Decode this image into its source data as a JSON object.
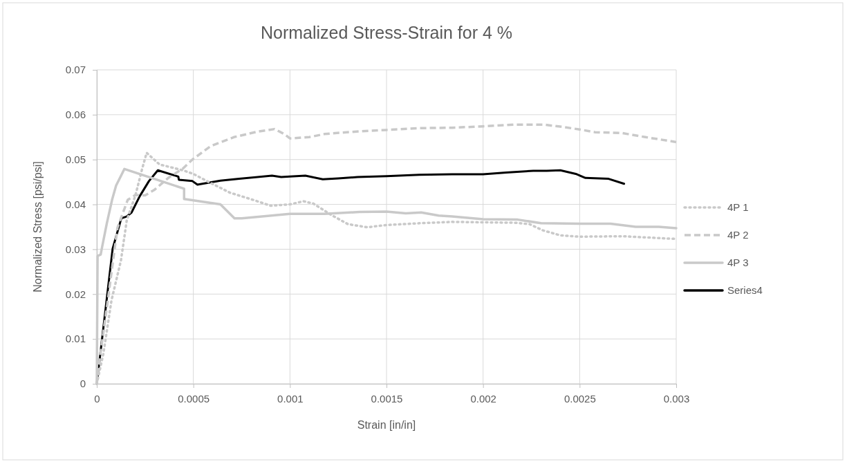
{
  "chart_data": {
    "type": "line",
    "title": "Normalized Stress-Strain for 4 %",
    "xlabel": "Strain [in/in]",
    "ylabel": "Normalized Stress [psi/psi]",
    "xlim": [
      0,
      0.003
    ],
    "xticks": [
      0,
      0.0005,
      0.001,
      0.0015,
      0.002,
      0.0025,
      0.003
    ],
    "ylim": [
      0,
      0.07
    ],
    "yticks": [
      0,
      0.01,
      0.02,
      0.03,
      0.04,
      0.05,
      0.06,
      0.07
    ],
    "grid": true,
    "legend": "right",
    "marker": "none",
    "series": [
      {
        "name": "4P 1",
        "color": "#c9c9c9",
        "line_style": "dotted",
        "x": [
          0,
          3.4e-05,
          7.6e-05,
          0.000125,
          0.000155,
          0.0002,
          0.000234,
          0.000258,
          0.000325,
          0.000446,
          0.0005,
          0.00057,
          0.00069,
          0.00081,
          0.0009,
          0.001,
          0.00107,
          0.00112,
          0.00122,
          0.0013,
          0.0014,
          0.0015,
          0.00167,
          0.00184,
          0.002,
          0.00217,
          0.00224,
          0.00231,
          0.0024,
          0.0025,
          0.00272,
          0.003
        ],
        "values": [
          0,
          0.0067,
          0.0186,
          0.0275,
          0.0364,
          0.042,
          0.0478,
          0.0515,
          0.0489,
          0.0476,
          0.0468,
          0.0452,
          0.0426,
          0.041,
          0.0397,
          0.04,
          0.0407,
          0.0402,
          0.0375,
          0.0356,
          0.0349,
          0.0354,
          0.0358,
          0.0361,
          0.036,
          0.0359,
          0.0356,
          0.0342,
          0.0331,
          0.0328,
          0.0329,
          0.0323
        ]
      },
      {
        "name": "4P 2",
        "color": "#c9c9c9",
        "line_style": "dashed",
        "x": [
          0,
          1e-05,
          5.2e-05,
          0.000107,
          0.00016,
          0.0002,
          0.00025,
          0.0003,
          0.00037,
          0.000446,
          0.000495,
          0.00059,
          0.00071,
          0.00083,
          0.00092,
          0.00097,
          0.001,
          0.0011,
          0.00118,
          0.00136,
          0.0015,
          0.00167,
          0.00184,
          0.002,
          0.00216,
          0.00231,
          0.00241,
          0.0025,
          0.00258,
          0.00272,
          0.00284,
          0.003
        ],
        "values": [
          0,
          0.004,
          0.017,
          0.0348,
          0.041,
          0.0421,
          0.042,
          0.0433,
          0.0459,
          0.048,
          0.05,
          0.053,
          0.055,
          0.0562,
          0.0568,
          0.0557,
          0.0547,
          0.055,
          0.0557,
          0.0563,
          0.0566,
          0.057,
          0.0571,
          0.0574,
          0.0578,
          0.0578,
          0.0573,
          0.0567,
          0.0561,
          0.0559,
          0.055,
          0.0539
        ]
      },
      {
        "name": "4P 3",
        "color": "#c9c9c9",
        "line_style": "solid",
        "x": [
          0,
          4e-06,
          2e-05,
          2.8e-05,
          5.2e-05,
          7.9e-05,
          0.0001,
          0.000143,
          0.000452,
          0.000452,
          0.00064,
          0.000713,
          0.00075,
          0.001,
          0.00118,
          0.00136,
          0.0015,
          0.0016,
          0.00168,
          0.00177,
          0.00184,
          0.002,
          0.00218,
          0.0023,
          0.0025,
          0.00266,
          0.00279,
          0.00291,
          0.003
        ],
        "values": [
          0,
          0.0285,
          0.0288,
          0.0306,
          0.0358,
          0.041,
          0.0442,
          0.0479,
          0.0435,
          0.0412,
          0.04,
          0.0369,
          0.0369,
          0.0379,
          0.0379,
          0.0383,
          0.0384,
          0.038,
          0.0382,
          0.0375,
          0.0373,
          0.0367,
          0.0366,
          0.0358,
          0.0357,
          0.0357,
          0.035,
          0.035,
          0.0347
        ]
      },
      {
        "name": "Series4",
        "color": "#000000",
        "line_style": "solid",
        "x": [
          0,
          8.2e-05,
          0.000127,
          0.000155,
          0.00018,
          0.000222,
          0.00027,
          0.000316,
          0.000422,
          0.000425,
          0.000495,
          0.000521,
          0.00064,
          0.000737,
          0.000907,
          0.000955,
          0.001,
          0.00108,
          0.00117,
          0.00125,
          0.00135,
          0.0015,
          0.00167,
          0.00184,
          0.002,
          0.00212,
          0.00226,
          0.00233,
          0.0024,
          0.00248,
          0.00253,
          0.00265,
          0.00273
        ],
        "values": [
          0,
          0.0301,
          0.0369,
          0.0373,
          0.0382,
          0.0418,
          0.0452,
          0.0476,
          0.0462,
          0.0455,
          0.0452,
          0.0444,
          0.0453,
          0.0457,
          0.0464,
          0.0461,
          0.0462,
          0.0464,
          0.0456,
          0.0458,
          0.0461,
          0.0463,
          0.0466,
          0.0467,
          0.0467,
          0.0471,
          0.0475,
          0.0475,
          0.0476,
          0.0468,
          0.0459,
          0.0457,
          0.0446
        ]
      }
    ]
  }
}
